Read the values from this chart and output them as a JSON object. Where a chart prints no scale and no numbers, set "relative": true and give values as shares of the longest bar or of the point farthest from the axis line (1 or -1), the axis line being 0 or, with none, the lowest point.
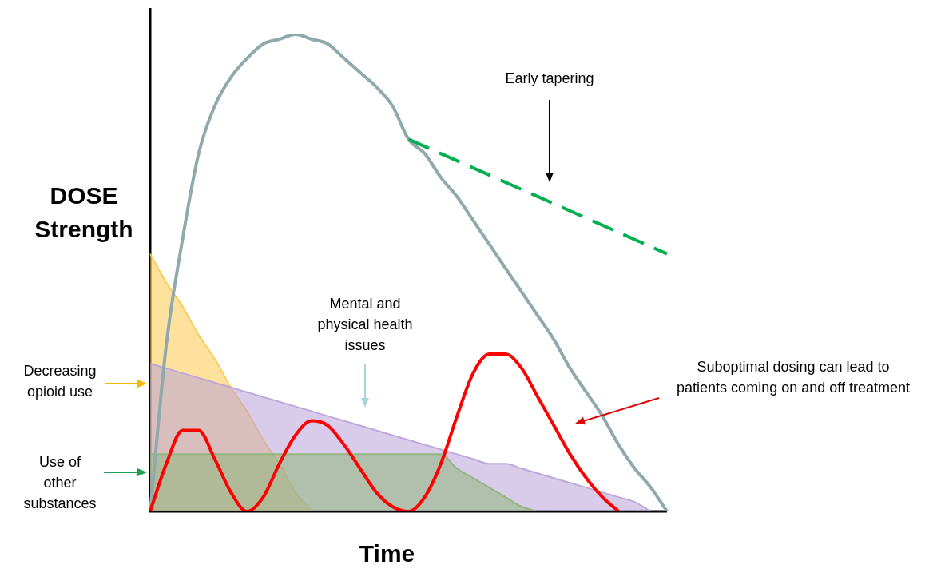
{
  "chart_data": {
    "type": "line",
    "relative": true,
    "legend": false,
    "grid": false,
    "marker": "none",
    "xlabel": "Time",
    "ylabel": "DOSE Strength",
    "categories": [
      null,
      null,
      null,
      null,
      null,
      null,
      null,
      null,
      null,
      null,
      null,
      null,
      null,
      null,
      null,
      null,
      null,
      null,
      null,
      null,
      null,
      null,
      null,
      null,
      null,
      null,
      null,
      null,
      null,
      null,
      null,
      null,
      null
    ],
    "annotations": [
      "Early tapering",
      "Mental and physical health issues",
      "Suboptimal dosing can lead to patients coming on and off treatment",
      "Decreasing opioid use",
      "Use of other substances"
    ],
    "series": [
      {
        "type": "area",
        "color": "#fcc94a",
        "values": [
          0.54,
          0.48,
          0.43,
          0.37,
          0.32,
          0.26,
          0.21,
          0.15,
          0.1,
          0.04,
          0,
          null,
          null,
          null,
          null,
          null,
          null,
          null,
          null,
          null,
          null,
          null,
          null,
          null,
          null,
          null,
          null,
          null,
          null,
          null,
          null,
          null,
          null
        ]
      },
      {
        "type": "area",
        "color": "#b9a3d8",
        "values": [
          0.31,
          0.3,
          0.29,
          0.28,
          0.27,
          0.26,
          0.25,
          0.24,
          0.23,
          0.22,
          0.21,
          0.2,
          0.19,
          0.18,
          0.17,
          0.16,
          0.15,
          0.14,
          0.13,
          0.12,
          0.11,
          0.1,
          0.1,
          0.09,
          0.08,
          0.07,
          0.06,
          0.05,
          0.04,
          0.03,
          0.02,
          0,
          null
        ]
      },
      {
        "type": "area",
        "color": "#8fb57a",
        "values": [
          0.12,
          0.12,
          0.12,
          0.12,
          0.12,
          0.12,
          0.12,
          0.12,
          0.12,
          0.12,
          0.12,
          0.12,
          0.12,
          0.12,
          0.12,
          0.12,
          0.12,
          0.12,
          0.12,
          0.09,
          0.07,
          0.05,
          0.03,
          0.01,
          0,
          null,
          null,
          null,
          null,
          null,
          null,
          null,
          null
        ]
      },
      {
        "color": "#8fa9ad",
        "values": [
          0,
          0.35,
          0.57,
          0.75,
          0.85,
          0.91,
          0.95,
          0.98,
          0.99,
          1,
          0.99,
          0.98,
          0.95,
          0.92,
          0.89,
          0.85,
          0.78,
          0.75,
          0.7,
          0.66,
          0.61,
          0.56,
          0.51,
          0.46,
          0.41,
          0.36,
          0.3,
          0.25,
          0.2,
          0.14,
          0.09,
          0.05,
          0
        ]
      },
      {
        "color": "#00b050",
        "line_style": "dashed",
        "values": [
          null,
          null,
          null,
          null,
          null,
          null,
          null,
          null,
          null,
          null,
          null,
          null,
          null,
          null,
          null,
          null,
          0.78,
          null,
          null,
          null,
          null,
          null,
          null,
          null,
          null,
          null,
          null,
          null,
          null,
          null,
          null,
          null,
          0.54
        ]
      },
      {
        "color": "#ff0000",
        "values": [
          0,
          0.1,
          0.17,
          0.17,
          0.11,
          0.04,
          0,
          0.03,
          0.1,
          0.16,
          0.19,
          0.18,
          0.14,
          0.09,
          0.04,
          0.01,
          0,
          0.03,
          0.1,
          0.2,
          0.29,
          0.33,
          0.33,
          0.3,
          0.24,
          0.18,
          0.12,
          0.07,
          0.03,
          0,
          null,
          null,
          null
        ]
      }
    ]
  }
}
